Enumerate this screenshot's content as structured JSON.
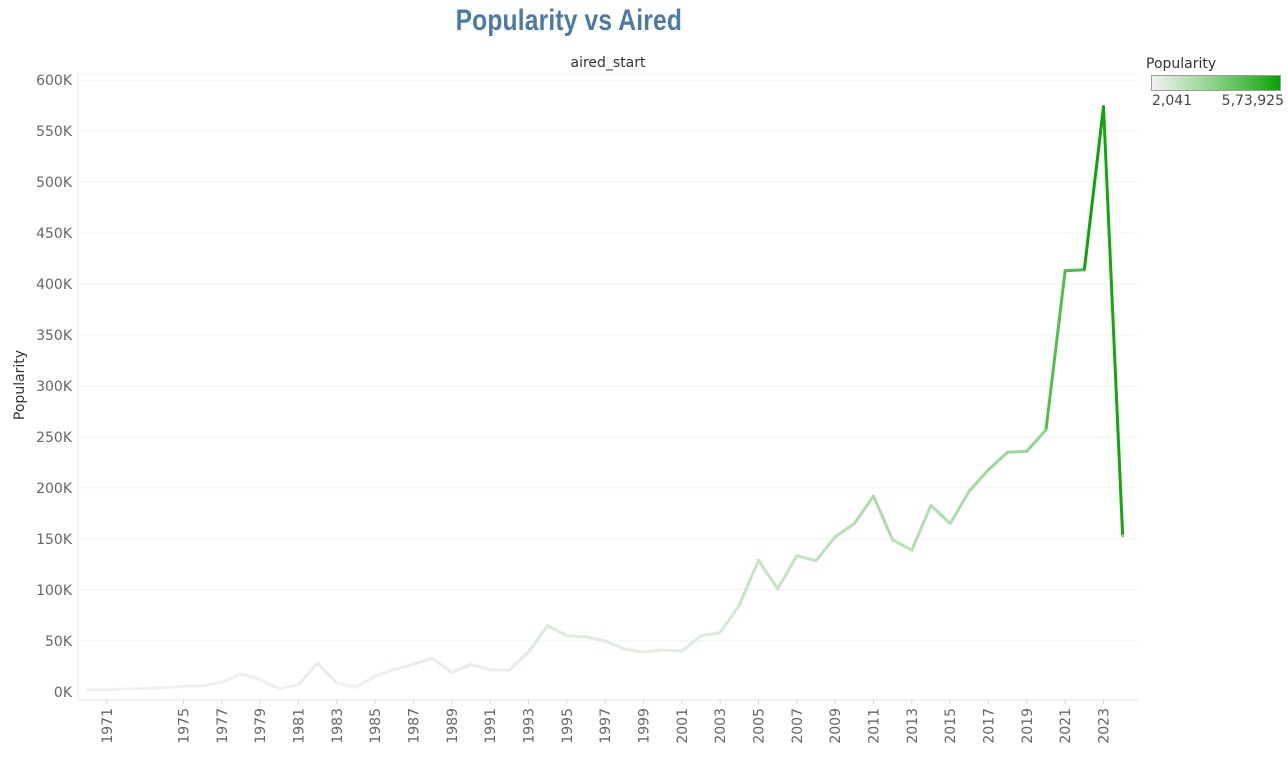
{
  "title": "Popularity vs Aired",
  "chart_data": {
    "type": "line",
    "column_header": "aired_start",
    "ylabel": "Popularity",
    "ylim": [
      -8000,
      600000
    ],
    "yticks": [
      0,
      50000,
      100000,
      150000,
      200000,
      250000,
      300000,
      350000,
      400000,
      450000,
      500000,
      550000,
      600000
    ],
    "ytick_labels": [
      "0K",
      "50K",
      "100K",
      "150K",
      "200K",
      "250K",
      "300K",
      "350K",
      "400K",
      "450K",
      "500K",
      "550K",
      "600K"
    ],
    "xtick_labels": [
      "1971",
      "1975",
      "1977",
      "1979",
      "1981",
      "1983",
      "1985",
      "1987",
      "1989",
      "1991",
      "1993",
      "1995",
      "1997",
      "1999",
      "2001",
      "2003",
      "2005",
      "2007",
      "2009",
      "2011",
      "2013",
      "2015",
      "2017",
      "2019",
      "2021",
      "2023"
    ],
    "grid": "horizontal",
    "series": [
      {
        "x": [
          "1970",
          "1971",
          "1974",
          "1975",
          "1976",
          "1977",
          "1978",
          "1979",
          "1980",
          "1981",
          "1982",
          "1983",
          "1984",
          "1985",
          "1986",
          "1987",
          "1988",
          "1989",
          "1990",
          "1991",
          "1992",
          "1993",
          "1994",
          "1995",
          "1996",
          "1997",
          "1998",
          "1999",
          "2000",
          "2001",
          "2002",
          "2003",
          "2004",
          "2005",
          "2006",
          "2007",
          "2008",
          "2009",
          "2010",
          "2011",
          "2012",
          "2013",
          "2014",
          "2015",
          "2016",
          "2017",
          "2018",
          "2019",
          "2020",
          "2021",
          "2022",
          "2023",
          "2024"
        ],
        "values": [
          2041,
          2100,
          4000,
          5500,
          5700,
          9500,
          17500,
          12000,
          3000,
          7000,
          28000,
          9000,
          4500,
          15500,
          22000,
          27000,
          33000,
          19000,
          27000,
          21500,
          21500,
          39000,
          65000,
          55000,
          54000,
          50000,
          42000,
          39000,
          41000,
          40000,
          55000,
          58000,
          85000,
          129000,
          101000,
          133500,
          128500,
          152000,
          165000,
          192000,
          149000,
          139000,
          183000,
          165000,
          197000,
          218000,
          235000,
          236000,
          257000,
          413000,
          414000,
          573925,
          153000
        ]
      }
    ]
  },
  "legend": {
    "title": "Popularity",
    "min_label": "2,041",
    "max_label": "5,73,925",
    "color_min": "#f1f1f1",
    "color_max": "#05a300"
  }
}
